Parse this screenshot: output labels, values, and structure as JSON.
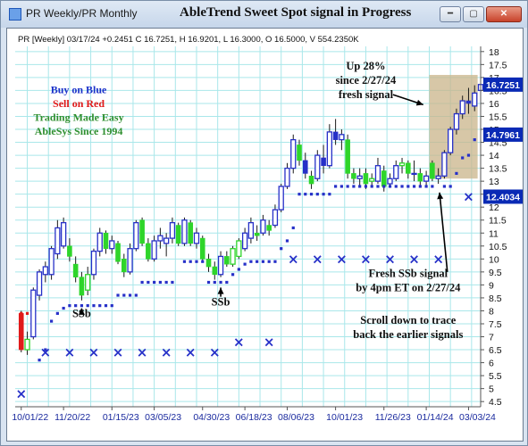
{
  "window": {
    "label": "PR Weekly/PR Monthly",
    "title": "AbleTrend Sweet Spot signal in Progress"
  },
  "chart_data": {
    "type": "candlestick",
    "ohlc_header": "PR [Weekly] 03/17/24 +0.2451 C 16.7251, H 16.9201, L 16.3000, O 16.5000, V 554.2350K",
    "y_ticks": [
      "4.5",
      "5",
      "5.5",
      "6",
      "6.5",
      "7",
      "7.5",
      "8",
      "8.5",
      "9",
      "9.5",
      "10",
      "10.5",
      "11",
      "11.5",
      "12",
      "12.5",
      "13",
      "13.5",
      "14",
      "14.5",
      "15",
      "15.5",
      "16",
      "16.5",
      "17",
      "17.5",
      "18"
    ],
    "ylim": [
      4.3,
      18.2
    ],
    "x_ticks": [
      {
        "label": "10/01/22",
        "week": 1
      },
      {
        "label": "11/20/22",
        "week": 8
      },
      {
        "label": "01/15/23",
        "week": 16
      },
      {
        "label": "03/05/23",
        "week": 23
      },
      {
        "label": "04/30/23",
        "week": 31
      },
      {
        "label": "06/18/23",
        "week": 38
      },
      {
        "label": "08/06/23",
        "week": 45
      },
      {
        "label": "10/01/23",
        "week": 53
      },
      {
        "label": "11/26/23",
        "week": 61
      },
      {
        "label": "01/14/24",
        "week": 68
      },
      {
        "label": "03/03/24",
        "week": 75
      }
    ],
    "price_labels": [
      {
        "text": "16.7251",
        "value": 16.7251,
        "color": "#0a2ab5"
      },
      {
        "text": "14.7961",
        "value": 14.7961,
        "color": "#0a2ab5"
      },
      {
        "text": "12.4034",
        "value": 12.4034,
        "color": "#0a2ab5"
      }
    ],
    "candles": [
      {
        "c": "red",
        "o": 7.9,
        "h": 8.0,
        "l": 6.4,
        "cl": 6.5
      },
      {
        "c": "green",
        "o": 6.5,
        "h": 7.2,
        "l": 6.3,
        "cl": 6.9
      },
      {
        "c": "blue",
        "o": 7.0,
        "h": 8.9,
        "l": 6.9,
        "cl": 8.8
      },
      {
        "c": "blue",
        "o": 8.6,
        "h": 9.6,
        "l": 8.4,
        "cl": 9.5
      },
      {
        "c": "blue",
        "o": 9.4,
        "h": 9.9,
        "l": 9.1,
        "cl": 9.7
      },
      {
        "c": "blue",
        "o": 9.4,
        "h": 10.5,
        "l": 9.2,
        "cl": 10.4
      },
      {
        "c": "blue",
        "o": 10.2,
        "h": 11.5,
        "l": 10.0,
        "cl": 11.2
      },
      {
        "c": "blue",
        "o": 10.5,
        "h": 11.6,
        "l": 10.4,
        "cl": 11.4
      },
      {
        "c": "green",
        "o": 10.5,
        "h": 10.8,
        "l": 9.9,
        "cl": 10.1
      },
      {
        "c": "green",
        "o": 9.8,
        "h": 10.1,
        "l": 9.1,
        "cl": 9.3
      },
      {
        "c": "green",
        "o": 9.3,
        "h": 9.5,
        "l": 8.4,
        "cl": 8.6
      },
      {
        "c": "green",
        "o": 8.8,
        "h": 9.7,
        "l": 8.6,
        "cl": 9.4
      },
      {
        "c": "blue",
        "o": 9.4,
        "h": 10.4,
        "l": 9.2,
        "cl": 10.3
      },
      {
        "c": "blue",
        "o": 10.3,
        "h": 11.2,
        "l": 10.1,
        "cl": 11.0
      },
      {
        "c": "green",
        "o": 11.0,
        "h": 11.1,
        "l": 10.2,
        "cl": 10.4
      },
      {
        "c": "blue",
        "o": 10.4,
        "h": 10.9,
        "l": 10.2,
        "cl": 10.7
      },
      {
        "c": "green",
        "o": 10.6,
        "h": 10.7,
        "l": 9.8,
        "cl": 9.9
      },
      {
        "c": "green",
        "o": 10.0,
        "h": 10.2,
        "l": 9.3,
        "cl": 9.5
      },
      {
        "c": "blue",
        "o": 9.5,
        "h": 10.6,
        "l": 9.4,
        "cl": 10.4
      },
      {
        "c": "blue",
        "o": 10.4,
        "h": 11.5,
        "l": 10.3,
        "cl": 11.4
      },
      {
        "c": "green",
        "o": 11.5,
        "h": 11.6,
        "l": 10.5,
        "cl": 10.6
      },
      {
        "c": "green",
        "o": 10.6,
        "h": 10.8,
        "l": 9.9,
        "cl": 10.0
      },
      {
        "c": "blue",
        "o": 10.0,
        "h": 10.9,
        "l": 9.9,
        "cl": 10.7
      },
      {
        "c": "blue",
        "o": 10.7,
        "h": 11.2,
        "l": 10.4,
        "cl": 10.9
      },
      {
        "c": "blue",
        "o": 10.6,
        "h": 11.0,
        "l": 10.1,
        "cl": 10.8
      },
      {
        "c": "blue",
        "o": 10.8,
        "h": 11.6,
        "l": 10.6,
        "cl": 11.4
      },
      {
        "c": "green",
        "o": 11.3,
        "h": 11.4,
        "l": 10.5,
        "cl": 10.6
      },
      {
        "c": "blue",
        "o": 10.6,
        "h": 11.6,
        "l": 10.5,
        "cl": 11.5
      },
      {
        "c": "green",
        "o": 11.4,
        "h": 11.5,
        "l": 10.5,
        "cl": 10.6
      },
      {
        "c": "blue",
        "o": 10.6,
        "h": 11.2,
        "l": 10.4,
        "cl": 11.0
      },
      {
        "c": "green",
        "o": 10.8,
        "h": 10.9,
        "l": 9.9,
        "cl": 10.0
      },
      {
        "c": "green",
        "o": 10.0,
        "h": 10.2,
        "l": 9.5,
        "cl": 9.7
      },
      {
        "c": "green",
        "o": 9.7,
        "h": 9.9,
        "l": 9.2,
        "cl": 9.4
      },
      {
        "c": "blue",
        "o": 9.4,
        "h": 10.3,
        "l": 9.3,
        "cl": 10.1
      },
      {
        "c": "green",
        "o": 10.1,
        "h": 10.3,
        "l": 9.7,
        "cl": 9.8
      },
      {
        "c": "green",
        "o": 9.8,
        "h": 10.5,
        "l": 9.7,
        "cl": 10.4
      },
      {
        "c": "green",
        "o": 10.1,
        "h": 10.8,
        "l": 10.0,
        "cl": 10.7
      },
      {
        "c": "blue",
        "o": 10.4,
        "h": 11.2,
        "l": 10.3,
        "cl": 11.0
      },
      {
        "c": "blue",
        "o": 10.8,
        "h": 11.6,
        "l": 10.6,
        "cl": 11.4
      },
      {
        "c": "green",
        "o": 11.0,
        "h": 11.3,
        "l": 10.7,
        "cl": 10.9
      },
      {
        "c": "blue",
        "o": 11.0,
        "h": 11.7,
        "l": 10.9,
        "cl": 11.5
      },
      {
        "c": "green",
        "o": 11.3,
        "h": 11.5,
        "l": 10.9,
        "cl": 11.1
      },
      {
        "c": "blue",
        "o": 11.3,
        "h": 12.1,
        "l": 11.2,
        "cl": 11.9
      },
      {
        "c": "blue",
        "o": 11.9,
        "h": 12.9,
        "l": 11.8,
        "cl": 12.8
      },
      {
        "c": "blue",
        "o": 12.8,
        "h": 13.7,
        "l": 12.7,
        "cl": 13.5
      },
      {
        "c": "blue",
        "o": 13.5,
        "h": 14.8,
        "l": 13.3,
        "cl": 14.6
      },
      {
        "c": "green",
        "o": 14.4,
        "h": 14.6,
        "l": 13.6,
        "cl": 13.8
      },
      {
        "c": "blue",
        "o": 13.8,
        "h": 14.1,
        "l": 13.1,
        "cl": 13.3
      },
      {
        "c": "green",
        "o": 13.2,
        "h": 13.4,
        "l": 12.7,
        "cl": 12.9
      },
      {
        "c": "blue",
        "o": 13.1,
        "h": 14.2,
        "l": 13.0,
        "cl": 14.0
      },
      {
        "c": "blue",
        "o": 13.9,
        "h": 14.4,
        "l": 13.3,
        "cl": 13.6
      },
      {
        "c": "blue",
        "o": 13.6,
        "h": 15.2,
        "l": 13.5,
        "cl": 14.9
      },
      {
        "c": "blue",
        "o": 14.9,
        "h": 15.4,
        "l": 14.4,
        "cl": 14.6
      },
      {
        "c": "blue",
        "o": 14.6,
        "h": 15.0,
        "l": 14.2,
        "cl": 14.8
      },
      {
        "c": "green",
        "o": 14.6,
        "h": 14.8,
        "l": 13.1,
        "cl": 13.3
      },
      {
        "c": "green",
        "o": 13.3,
        "h": 13.5,
        "l": 12.9,
        "cl": 13.1
      },
      {
        "c": "blue",
        "o": 13.1,
        "h": 13.5,
        "l": 12.8,
        "cl": 13.2
      },
      {
        "c": "green",
        "o": 13.3,
        "h": 13.5,
        "l": 12.7,
        "cl": 12.9
      },
      {
        "c": "green",
        "o": 13.0,
        "h": 13.3,
        "l": 12.8,
        "cl": 13.1
      },
      {
        "c": "blue",
        "o": 13.0,
        "h": 13.9,
        "l": 12.9,
        "cl": 13.6
      },
      {
        "c": "green",
        "o": 13.4,
        "h": 13.6,
        "l": 12.6,
        "cl": 12.8
      },
      {
        "c": "blue",
        "o": 12.9,
        "h": 13.3,
        "l": 12.8,
        "cl": 13.1
      },
      {
        "c": "blue",
        "o": 13.1,
        "h": 13.8,
        "l": 13.0,
        "cl": 13.6
      },
      {
        "c": "green",
        "o": 13.6,
        "h": 13.9,
        "l": 13.3,
        "cl": 13.7
      },
      {
        "c": "green",
        "o": 13.7,
        "h": 13.8,
        "l": 13.1,
        "cl": 13.3
      },
      {
        "c": "blue",
        "o": 13.3,
        "h": 13.8,
        "l": 13.0,
        "cl": 13.3
      },
      {
        "c": "green",
        "o": 13.3,
        "h": 13.5,
        "l": 12.8,
        "cl": 13.0
      },
      {
        "c": "blue",
        "o": 13.0,
        "h": 13.4,
        "l": 12.8,
        "cl": 13.2
      },
      {
        "c": "green",
        "o": 13.7,
        "h": 13.8,
        "l": 13.0,
        "cl": 13.1
      },
      {
        "c": "blue",
        "o": 13.1,
        "h": 13.5,
        "l": 12.9,
        "cl": 13.2
      },
      {
        "c": "blue",
        "o": 13.2,
        "h": 14.2,
        "l": 13.1,
        "cl": 14.1
      },
      {
        "c": "blue",
        "o": 14.1,
        "h": 15.1,
        "l": 14.0,
        "cl": 15.0
      },
      {
        "c": "blue",
        "o": 15.0,
        "h": 15.8,
        "l": 14.8,
        "cl": 15.6
      },
      {
        "c": "blue",
        "o": 15.6,
        "h": 16.3,
        "l": 15.4,
        "cl": 16.1
      },
      {
        "c": "blue",
        "o": 16.1,
        "h": 16.6,
        "l": 15.6,
        "cl": 16.0
      },
      {
        "c": "blue",
        "o": 15.9,
        "h": 16.7,
        "l": 15.7,
        "cl": 16.4
      },
      {
        "c": "blue",
        "o": 16.5,
        "h": 16.92,
        "l": 16.3,
        "cl": 16.73
      }
    ],
    "support_dots": [
      [
        1,
        7.9,
        "red"
      ],
      [
        2,
        7.9,
        "red"
      ],
      [
        4,
        6.1,
        "blue"
      ],
      [
        5,
        6.5,
        "blue"
      ],
      [
        6,
        7.6,
        "blue"
      ],
      [
        7,
        7.9,
        "blue"
      ],
      [
        8,
        8.1,
        "blue"
      ],
      [
        9,
        8.2,
        "blue"
      ],
      [
        10,
        8.2,
        "blue"
      ],
      [
        11,
        8.2,
        "blue"
      ],
      [
        12,
        8.2,
        "blue"
      ],
      [
        13,
        8.2,
        "blue"
      ],
      [
        14,
        8.2,
        "blue"
      ],
      [
        15,
        8.2,
        "blue"
      ],
      [
        16,
        8.2,
        "blue"
      ],
      [
        17,
        8.6,
        "blue"
      ],
      [
        18,
        8.6,
        "blue"
      ],
      [
        19,
        8.6,
        "blue"
      ],
      [
        20,
        8.6,
        "blue"
      ],
      [
        21,
        9.1,
        "blue"
      ],
      [
        22,
        9.1,
        "blue"
      ],
      [
        23,
        9.1,
        "blue"
      ],
      [
        24,
        9.1,
        "blue"
      ],
      [
        25,
        9.1,
        "blue"
      ],
      [
        26,
        9.1,
        "blue"
      ],
      [
        28,
        9.9,
        "blue"
      ],
      [
        29,
        9.9,
        "blue"
      ],
      [
        30,
        9.9,
        "blue"
      ],
      [
        31,
        9.9,
        "blue"
      ],
      [
        32,
        9.1,
        "blue"
      ],
      [
        33,
        9.1,
        "blue"
      ],
      [
        34,
        9.1,
        "blue"
      ],
      [
        35,
        9.1,
        "blue"
      ],
      [
        36,
        9.4,
        "blue"
      ],
      [
        37,
        9.6,
        "blue"
      ],
      [
        38,
        9.8,
        "blue"
      ],
      [
        39,
        9.9,
        "blue"
      ],
      [
        40,
        9.9,
        "blue"
      ],
      [
        41,
        9.9,
        "blue"
      ],
      [
        42,
        9.9,
        "blue"
      ],
      [
        43,
        9.9,
        "blue"
      ],
      [
        44,
        10.4,
        "blue"
      ],
      [
        45,
        10.7,
        "blue"
      ],
      [
        46,
        11.2,
        "blue"
      ],
      [
        47,
        12.5,
        "blue"
      ],
      [
        48,
        12.5,
        "blue"
      ],
      [
        49,
        12.5,
        "blue"
      ],
      [
        50,
        12.5,
        "blue"
      ],
      [
        51,
        12.5,
        "blue"
      ],
      [
        52,
        12.5,
        "blue"
      ],
      [
        53,
        12.8,
        "blue"
      ],
      [
        54,
        12.8,
        "blue"
      ],
      [
        55,
        12.8,
        "blue"
      ],
      [
        56,
        12.8,
        "blue"
      ],
      [
        57,
        12.8,
        "blue"
      ],
      [
        58,
        12.8,
        "blue"
      ],
      [
        59,
        12.8,
        "blue"
      ],
      [
        60,
        12.8,
        "blue"
      ],
      [
        61,
        12.8,
        "blue"
      ],
      [
        62,
        12.8,
        "blue"
      ],
      [
        63,
        12.8,
        "blue"
      ],
      [
        64,
        12.8,
        "blue"
      ],
      [
        65,
        12.8,
        "blue"
      ],
      [
        66,
        12.8,
        "blue"
      ],
      [
        67,
        12.8,
        "blue"
      ],
      [
        68,
        12.8,
        "blue"
      ],
      [
        69,
        12.8,
        "blue"
      ],
      [
        71,
        12.8,
        "blue"
      ],
      [
        72,
        12.8,
        "blue"
      ],
      [
        73,
        13.3,
        "blue"
      ],
      [
        74,
        13.9,
        "blue"
      ],
      [
        75,
        14.0,
        "blue"
      ],
      [
        76,
        14.6,
        "blue"
      ]
    ],
    "x_markers": [
      [
        1,
        4.8
      ],
      [
        5,
        6.4
      ],
      [
        9,
        6.4
      ],
      [
        13,
        6.4
      ],
      [
        17,
        6.4
      ],
      [
        21,
        6.4
      ],
      [
        25,
        6.4
      ],
      [
        29,
        6.4
      ],
      [
        33,
        6.4
      ],
      [
        37,
        6.8
      ],
      [
        42,
        6.8
      ],
      [
        46,
        10.0
      ],
      [
        50,
        10.0
      ],
      [
        54,
        10.0
      ],
      [
        58,
        10.0
      ],
      [
        62,
        10.0
      ],
      [
        66,
        10.0
      ],
      [
        70,
        10.0
      ],
      [
        75,
        12.4
      ]
    ],
    "highlight_box": {
      "x0": 68.5,
      "x1": 76.5,
      "y0": 13.1,
      "y1": 17.1,
      "color": "#c9b48a"
    },
    "annotations": [
      {
        "id": "ssb-1",
        "text": "SSb",
        "x": 11,
        "y": 7.75
      },
      {
        "id": "ssb-2",
        "text": "SSb",
        "x": 34,
        "y": 8.2
      },
      {
        "id": "up-28-line1",
        "text": "Up 28%",
        "x": 58,
        "y": 17.3
      },
      {
        "id": "up-28-line2",
        "text": "since 2/27/24",
        "x": 58,
        "y": 16.75
      },
      {
        "id": "up-28-line3",
        "text": "fresh signal",
        "x": 58,
        "y": 16.2
      },
      {
        "id": "fresh-line1",
        "text": "Fresh SSb signal",
        "x": 65,
        "y": 9.3
      },
      {
        "id": "fresh-line2",
        "text": "by 4pm ET on 2/27/24",
        "x": 65,
        "y": 8.75
      },
      {
        "id": "scroll-line1",
        "text": "Scroll down to trace",
        "x": 65,
        "y": 7.5
      },
      {
        "id": "scroll-line2",
        "text": "back the earlier signals",
        "x": 65,
        "y": 6.95
      }
    ],
    "legend_lines": [
      {
        "text": "Buy on Blue",
        "color": "#1a31c9"
      },
      {
        "text": "Sell on Red",
        "color": "#e01a1a"
      },
      {
        "text": "Trading Made Easy",
        "color": "#2f8f2f"
      },
      {
        "text": "AbleSys Since 1994",
        "color": "#2f8f2f"
      }
    ]
  }
}
